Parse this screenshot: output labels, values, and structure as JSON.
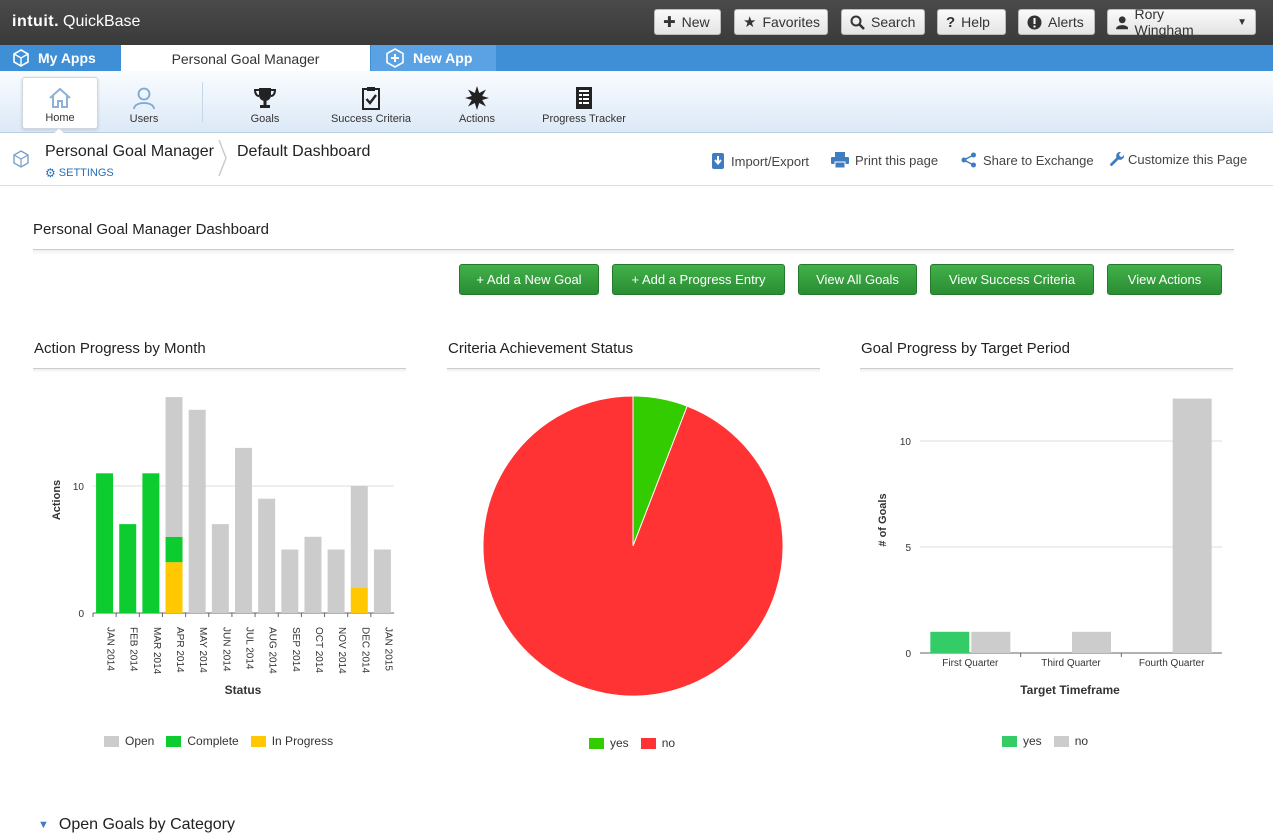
{
  "topbar": {
    "logo_brand": "intuit.",
    "logo_product": "QuickBase",
    "buttons": {
      "new": "New",
      "favorites": "Favorites",
      "search": "Search",
      "help": "Help",
      "alerts": "Alerts",
      "user": "Rory Wingham"
    }
  },
  "apptabs": {
    "my_apps": "My Apps",
    "current": "Personal Goal Manager",
    "new_app": "New App"
  },
  "nav": {
    "items": [
      {
        "label": "Home",
        "icon": "home-icon"
      },
      {
        "label": "Users",
        "icon": "user-icon"
      },
      {
        "label": "Goals",
        "icon": "trophy-icon"
      },
      {
        "label": "Success Criteria",
        "icon": "clipboard-check-icon"
      },
      {
        "label": "Actions",
        "icon": "starburst-icon"
      },
      {
        "label": "Progress Tracker",
        "icon": "ledger-icon"
      }
    ]
  },
  "breadcrumb": {
    "app": "Personal Goal Manager",
    "settings": "SETTINGS",
    "page": "Default Dashboard"
  },
  "page_links": {
    "import_export": "Import/Export",
    "print": "Print this page",
    "share": "Share to Exchange",
    "customize": "Customize this Page"
  },
  "dashboard": {
    "title": "Personal Goal Manager Dashboard",
    "buttons": [
      "+ Add a New Goal",
      "+ Add a Progress Entry",
      "View All Goals",
      "View Success Criteria",
      "View Actions"
    ]
  },
  "panels": {
    "action_progress": "Action Progress by Month",
    "criteria": "Criteria Achievement Status",
    "goal_progress": "Goal Progress by Target Period"
  },
  "section": {
    "open_goals": "Open Goals by Category"
  },
  "colors": {
    "open": "#cccccc",
    "complete": "#0dcc2f",
    "in_progress": "#ffc800",
    "pie_yes": "#33cc00",
    "pie_no": "#ff3333",
    "goal_yes": "#33cc66",
    "goal_no": "#cccccc",
    "button_green": "#2a9a34",
    "accent_blue": "#3f8fd6"
  },
  "chart_data": [
    {
      "type": "bar",
      "stacked": true,
      "title": "Action Progress by Month",
      "xlabel": "Status",
      "ylabel": "Actions",
      "ylim": [
        0,
        17
      ],
      "yticks": [
        0,
        10
      ],
      "categories": [
        "JAN 2014",
        "FEB 2014",
        "MAR 2014",
        "APR 2014",
        "MAY 2014",
        "JUN 2014",
        "JUL 2014",
        "AUG 2014",
        "SEP 2014",
        "OCT 2014",
        "NOV 2014",
        "DEC 2014",
        "JAN 2015"
      ],
      "series": [
        {
          "name": "In Progress",
          "values": [
            0,
            0,
            0,
            4,
            0,
            0,
            0,
            0,
            0,
            0,
            0,
            2,
            0
          ]
        },
        {
          "name": "Complete",
          "values": [
            11,
            7,
            11,
            2,
            0,
            0,
            0,
            0,
            0,
            0,
            0,
            0,
            0
          ]
        },
        {
          "name": "Open",
          "values": [
            0,
            0,
            0,
            11,
            16,
            7,
            13,
            9,
            5,
            6,
            5,
            8,
            5
          ]
        }
      ],
      "legend": [
        "Open",
        "Complete",
        "In Progress"
      ],
      "grid": true
    },
    {
      "type": "pie",
      "title": "Criteria Achievement Status",
      "categories": [
        "yes",
        "no"
      ],
      "values": [
        1,
        16
      ],
      "legend": [
        "yes",
        "no"
      ]
    },
    {
      "type": "bar",
      "title": "Goal Progress by Target Period",
      "xlabel": "Target Timeframe",
      "ylabel": "# of Goals",
      "ylim": [
        0,
        12.5
      ],
      "yticks": [
        0,
        5,
        10
      ],
      "categories": [
        "First Quarter",
        "Third Quarter",
        "Fourth Quarter"
      ],
      "series": [
        {
          "name": "yes",
          "values": [
            1,
            0,
            0
          ]
        },
        {
          "name": "no",
          "values": [
            1,
            1,
            12
          ]
        }
      ],
      "legend": [
        "yes",
        "no"
      ],
      "grid": true
    }
  ]
}
